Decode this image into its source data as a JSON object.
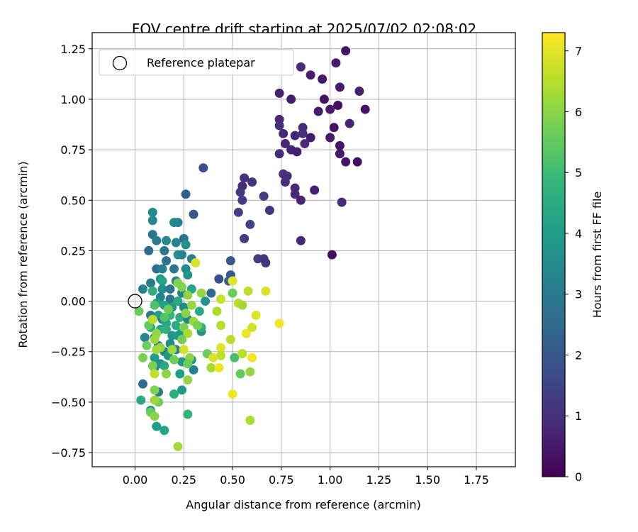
{
  "chart_data": {
    "type": "scatter",
    "title": "FOV centre drift starting at 2025/07/02 02:08:02",
    "xlabel": "Angular distance from reference (arcmin)",
    "ylabel": "Rotation from reference (arcmin)",
    "xlim": [
      -0.22,
      1.95
    ],
    "ylim": [
      -0.82,
      1.33
    ],
    "x_ticks": [
      0.0,
      0.25,
      0.5,
      0.75,
      1.0,
      1.25,
      1.5,
      1.75
    ],
    "x_tick_labels": [
      "0.00",
      "0.25",
      "0.50",
      "0.75",
      "1.00",
      "1.25",
      "1.50",
      "1.75"
    ],
    "y_ticks": [
      -0.75,
      -0.5,
      -0.25,
      0.0,
      0.25,
      0.5,
      0.75,
      1.0,
      1.25
    ],
    "y_tick_labels": [
      "−0.75",
      "−0.50",
      "−0.25",
      "0.00",
      "0.25",
      "0.50",
      "0.75",
      "1.00",
      "1.25"
    ],
    "grid": true,
    "legend": {
      "placement": "top-left",
      "entries": [
        "Reference platepar"
      ]
    },
    "reference_point": {
      "x": 0.0,
      "y": 0.0
    },
    "colorbar": {
      "label": "Hours from first FF file",
      "range": [
        0,
        7.3
      ],
      "ticks": [
        0,
        1,
        2,
        3,
        4,
        5,
        6,
        7
      ],
      "tick_labels": [
        "0",
        "1",
        "2",
        "3",
        "4",
        "5",
        "6",
        "7"
      ],
      "colormap": "viridis"
    },
    "colormap_stops": [
      "#440154",
      "#482878",
      "#3e4989",
      "#31688e",
      "#26828e",
      "#1f9e89",
      "#35b779",
      "#6ece58",
      "#b5de2b",
      "#fde725"
    ],
    "points": [
      {
        "x": 1.08,
        "y": 1.24,
        "h": 0.4
      },
      {
        "x": 1.03,
        "y": 1.18,
        "h": 0.5
      },
      {
        "x": 0.85,
        "y": 1.16,
        "h": 0.9
      },
      {
        "x": 0.9,
        "y": 1.12,
        "h": 0.6
      },
      {
        "x": 0.96,
        "y": 1.1,
        "h": 0.5
      },
      {
        "x": 1.05,
        "y": 1.06,
        "h": 0.5
      },
      {
        "x": 1.15,
        "y": 1.04,
        "h": 0.6
      },
      {
        "x": 0.74,
        "y": 1.03,
        "h": 0.7
      },
      {
        "x": 0.97,
        "y": 1.0,
        "h": 0.4
      },
      {
        "x": 0.8,
        "y": 1.0,
        "h": 0.6
      },
      {
        "x": 1.04,
        "y": 0.97,
        "h": 0.3
      },
      {
        "x": 1.0,
        "y": 0.95,
        "h": 0.5
      },
      {
        "x": 0.94,
        "y": 0.94,
        "h": 0.6
      },
      {
        "x": 1.18,
        "y": 0.95,
        "h": 0.4
      },
      {
        "x": 0.74,
        "y": 0.9,
        "h": 0.8
      },
      {
        "x": 0.74,
        "y": 0.87,
        "h": 1.0
      },
      {
        "x": 1.1,
        "y": 0.88,
        "h": 0.7
      },
      {
        "x": 1.02,
        "y": 0.86,
        "h": 0.4
      },
      {
        "x": 0.86,
        "y": 0.86,
        "h": 0.9
      },
      {
        "x": 0.76,
        "y": 0.83,
        "h": 0.8
      },
      {
        "x": 0.82,
        "y": 0.82,
        "h": 0.7
      },
      {
        "x": 0.86,
        "y": 0.83,
        "h": 1.0
      },
      {
        "x": 0.9,
        "y": 0.81,
        "h": 0.6
      },
      {
        "x": 1.0,
        "y": 0.81,
        "h": 0.5
      },
      {
        "x": 0.77,
        "y": 0.78,
        "h": 0.8
      },
      {
        "x": 0.87,
        "y": 0.78,
        "h": 0.9
      },
      {
        "x": 0.8,
        "y": 0.75,
        "h": 0.7
      },
      {
        "x": 0.74,
        "y": 0.73,
        "h": 0.9
      },
      {
        "x": 1.05,
        "y": 0.77,
        "h": 0.4
      },
      {
        "x": 0.83,
        "y": 0.74,
        "h": 0.6
      },
      {
        "x": 1.05,
        "y": 0.73,
        "h": 0.5
      },
      {
        "x": 1.08,
        "y": 0.69,
        "h": 0.4
      },
      {
        "x": 1.14,
        "y": 0.69,
        "h": 0.3
      },
      {
        "x": 0.76,
        "y": 0.63,
        "h": 1.1
      },
      {
        "x": 0.78,
        "y": 0.62,
        "h": 0.9
      },
      {
        "x": 0.77,
        "y": 0.59,
        "h": 1.0
      },
      {
        "x": 0.82,
        "y": 0.56,
        "h": 0.9
      },
      {
        "x": 0.82,
        "y": 0.53,
        "h": 0.8
      },
      {
        "x": 0.92,
        "y": 0.55,
        "h": 0.6
      },
      {
        "x": 0.85,
        "y": 0.5,
        "h": 0.7
      },
      {
        "x": 1.06,
        "y": 0.49,
        "h": 0.9
      },
      {
        "x": 0.56,
        "y": 0.61,
        "h": 1.0
      },
      {
        "x": 0.55,
        "y": 0.57,
        "h": 0.9
      },
      {
        "x": 0.6,
        "y": 0.59,
        "h": 1.1
      },
      {
        "x": 0.54,
        "y": 0.54,
        "h": 1.2
      },
      {
        "x": 0.55,
        "y": 0.5,
        "h": 1.3
      },
      {
        "x": 0.66,
        "y": 0.52,
        "h": 1.3
      },
      {
        "x": 0.53,
        "y": 0.44,
        "h": 1.4
      },
      {
        "x": 0.69,
        "y": 0.45,
        "h": 1.1
      },
      {
        "x": 0.59,
        "y": 0.38,
        "h": 1.5
      },
      {
        "x": 0.56,
        "y": 0.31,
        "h": 1.4
      },
      {
        "x": 0.85,
        "y": 0.3,
        "h": 0.8
      },
      {
        "x": 0.63,
        "y": 0.21,
        "h": 1.3
      },
      {
        "x": 0.66,
        "y": 0.21,
        "h": 1.2
      },
      {
        "x": 0.67,
        "y": 0.19,
        "h": 1.1
      },
      {
        "x": 1.01,
        "y": 0.23,
        "h": 0.3
      },
      {
        "x": 0.35,
        "y": 0.66,
        "h": 1.8
      },
      {
        "x": 0.26,
        "y": 0.53,
        "h": 2.2
      },
      {
        "x": 0.3,
        "y": 0.43,
        "h": 2.0
      },
      {
        "x": 0.49,
        "y": 0.2,
        "h": 2.0
      },
      {
        "x": 0.49,
        "y": 0.13,
        "h": 2.1
      },
      {
        "x": 0.43,
        "y": 0.11,
        "h": 1.8
      },
      {
        "x": 0.48,
        "y": 0.1,
        "h": 2.2
      },
      {
        "x": 0.39,
        "y": 0.04,
        "h": 2.4
      },
      {
        "x": 0.09,
        "y": 0.44,
        "h": 3.5
      },
      {
        "x": 0.09,
        "y": 0.4,
        "h": 3.4
      },
      {
        "x": 0.2,
        "y": 0.39,
        "h": 3.5
      },
      {
        "x": 0.22,
        "y": 0.39,
        "h": 3.2
      },
      {
        "x": 0.09,
        "y": 0.33,
        "h": 2.8
      },
      {
        "x": 0.11,
        "y": 0.3,
        "h": 3.0
      },
      {
        "x": 0.16,
        "y": 0.3,
        "h": 3.5
      },
      {
        "x": 0.21,
        "y": 0.29,
        "h": 3.3
      },
      {
        "x": 0.25,
        "y": 0.31,
        "h": 2.8
      },
      {
        "x": 0.26,
        "y": 0.28,
        "h": 3.6
      },
      {
        "x": 0.07,
        "y": 0.25,
        "h": 2.6
      },
      {
        "x": 0.15,
        "y": 0.25,
        "h": 2.9
      },
      {
        "x": 0.22,
        "y": 0.23,
        "h": 3.8
      },
      {
        "x": 0.24,
        "y": 0.23,
        "h": 3.3
      },
      {
        "x": 0.29,
        "y": 0.21,
        "h": 3.1
      },
      {
        "x": 0.16,
        "y": 0.2,
        "h": 2.7
      },
      {
        "x": 0.11,
        "y": 0.16,
        "h": 2.6
      },
      {
        "x": 0.14,
        "y": 0.16,
        "h": 3.2
      },
      {
        "x": 0.2,
        "y": 0.16,
        "h": 3.0
      },
      {
        "x": 0.26,
        "y": 0.16,
        "h": 3.5
      },
      {
        "x": 0.13,
        "y": 0.11,
        "h": 3.9
      },
      {
        "x": 0.27,
        "y": 0.13,
        "h": 3.7
      },
      {
        "x": 0.08,
        "y": 0.09,
        "h": 3.0
      },
      {
        "x": 0.14,
        "y": 0.1,
        "h": 4.2
      },
      {
        "x": 0.21,
        "y": 0.1,
        "h": 3.2
      },
      {
        "x": 0.04,
        "y": 0.06,
        "h": 3.1
      },
      {
        "x": 0.09,
        "y": 0.05,
        "h": 4.6
      },
      {
        "x": 0.14,
        "y": 0.06,
        "h": 3.6
      },
      {
        "x": 0.18,
        "y": 0.06,
        "h": 2.9
      },
      {
        "x": 0.29,
        "y": 0.06,
        "h": 4.3
      },
      {
        "x": 0.24,
        "y": 0.04,
        "h": 3.4
      },
      {
        "x": 0.13,
        "y": 0.02,
        "h": 3.3
      },
      {
        "x": 0.18,
        "y": 0.01,
        "h": 2.8
      },
      {
        "x": 0.22,
        "y": 0.0,
        "h": 4.4
      },
      {
        "x": 0.36,
        "y": 0.0,
        "h": 3.8
      },
      {
        "x": 0.11,
        "y": -0.01,
        "h": 4.1
      },
      {
        "x": 0.15,
        "y": -0.02,
        "h": 4.2
      },
      {
        "x": 0.19,
        "y": -0.03,
        "h": 3.9
      },
      {
        "x": 0.25,
        "y": -0.03,
        "h": 3.5
      },
      {
        "x": 0.33,
        "y": -0.05,
        "h": 4.4
      },
      {
        "x": 0.08,
        "y": -0.07,
        "h": 3.0
      },
      {
        "x": 0.12,
        "y": -0.07,
        "h": 4.0
      },
      {
        "x": 0.18,
        "y": -0.07,
        "h": 4.8
      },
      {
        "x": 0.23,
        "y": -0.08,
        "h": 4.5
      },
      {
        "x": 0.27,
        "y": -0.09,
        "h": 3.4
      },
      {
        "x": 0.14,
        "y": -0.09,
        "h": 3.2
      },
      {
        "x": 0.16,
        "y": -0.11,
        "h": 4.3
      },
      {
        "x": 0.21,
        "y": -0.12,
        "h": 4.5
      },
      {
        "x": 0.08,
        "y": -0.13,
        "h": 4.5
      },
      {
        "x": 0.13,
        "y": -0.14,
        "h": 4.4
      },
      {
        "x": 0.16,
        "y": -0.14,
        "h": 4.6
      },
      {
        "x": 0.24,
        "y": -0.15,
        "h": 4.1
      },
      {
        "x": 0.34,
        "y": -0.15,
        "h": 3.7
      },
      {
        "x": 0.05,
        "y": -0.18,
        "h": 3.3
      },
      {
        "x": 0.1,
        "y": -0.18,
        "h": 3.6
      },
      {
        "x": 0.19,
        "y": -0.17,
        "h": 3.9
      },
      {
        "x": 0.22,
        "y": -0.17,
        "h": 4.0
      },
      {
        "x": 0.18,
        "y": -0.21,
        "h": 3.5
      },
      {
        "x": 0.12,
        "y": -0.22,
        "h": 3.0
      },
      {
        "x": 0.15,
        "y": -0.25,
        "h": 3.3
      },
      {
        "x": 0.21,
        "y": -0.24,
        "h": 3.2
      },
      {
        "x": 0.1,
        "y": -0.28,
        "h": 4.1
      },
      {
        "x": 0.17,
        "y": -0.27,
        "h": 4.0
      },
      {
        "x": 0.29,
        "y": -0.29,
        "h": 3.7
      },
      {
        "x": 0.13,
        "y": -0.31,
        "h": 3.6
      },
      {
        "x": 0.24,
        "y": -0.3,
        "h": 3.9
      },
      {
        "x": 0.1,
        "y": -0.33,
        "h": 3.5
      },
      {
        "x": 0.15,
        "y": -0.32,
        "h": 4.4
      },
      {
        "x": 0.3,
        "y": -0.34,
        "h": 3.2
      },
      {
        "x": 0.23,
        "y": -0.36,
        "h": 4.1
      },
      {
        "x": 0.04,
        "y": -0.41,
        "h": 2.6
      },
      {
        "x": 0.12,
        "y": -0.45,
        "h": 3.0
      },
      {
        "x": 0.24,
        "y": -0.44,
        "h": 3.9
      },
      {
        "x": 0.2,
        "y": -0.46,
        "h": 4.6
      },
      {
        "x": 0.03,
        "y": -0.49,
        "h": 4.4
      },
      {
        "x": 0.08,
        "y": -0.54,
        "h": 4.2
      },
      {
        "x": 0.27,
        "y": -0.56,
        "h": 4.8
      },
      {
        "x": 0.11,
        "y": -0.62,
        "h": 4.0
      },
      {
        "x": 0.15,
        "y": -0.64,
        "h": 4.3
      },
      {
        "x": 0.34,
        "y": -0.13,
        "h": 4.7
      },
      {
        "x": 0.06,
        "y": -0.22,
        "h": 5.6
      },
      {
        "x": 0.07,
        "y": -0.12,
        "h": 5.5
      },
      {
        "x": 0.04,
        "y": -0.28,
        "h": 5.8
      },
      {
        "x": 0.02,
        "y": -0.05,
        "h": 5.6
      },
      {
        "x": 0.1,
        "y": -0.02,
        "h": 5.2
      },
      {
        "x": 0.15,
        "y": -0.08,
        "h": 5.3
      },
      {
        "x": 0.17,
        "y": -0.04,
        "h": 5.7
      },
      {
        "x": 0.24,
        "y": 0.07,
        "h": 5.9
      },
      {
        "x": 0.22,
        "y": 0.09,
        "h": 5.9
      },
      {
        "x": 0.29,
        "y": -0.02,
        "h": 6.1
      },
      {
        "x": 0.27,
        "y": 0.03,
        "h": 6.0
      },
      {
        "x": 0.26,
        "y": -0.06,
        "h": 6.0
      },
      {
        "x": 0.3,
        "y": -0.1,
        "h": 6.2
      },
      {
        "x": 0.32,
        "y": -0.12,
        "h": 5.8
      },
      {
        "x": 0.25,
        "y": -0.13,
        "h": 5.8
      },
      {
        "x": 0.27,
        "y": -0.16,
        "h": 6.4
      },
      {
        "x": 0.24,
        "y": -0.19,
        "h": 5.7
      },
      {
        "x": 0.11,
        "y": -0.16,
        "h": 6.1
      },
      {
        "x": 0.1,
        "y": -0.19,
        "h": 6.2
      },
      {
        "x": 0.09,
        "y": -0.09,
        "h": 6.5
      },
      {
        "x": 0.13,
        "y": -0.23,
        "h": 6.1
      },
      {
        "x": 0.11,
        "y": -0.24,
        "h": 6.3
      },
      {
        "x": 0.19,
        "y": -0.24,
        "h": 6.3
      },
      {
        "x": 0.25,
        "y": -0.24,
        "h": 6.8
      },
      {
        "x": 0.28,
        "y": -0.28,
        "h": 6.0
      },
      {
        "x": 0.27,
        "y": -0.31,
        "h": 5.6
      },
      {
        "x": 0.2,
        "y": -0.29,
        "h": 5.7
      },
      {
        "x": 0.09,
        "y": -0.32,
        "h": 5.8
      },
      {
        "x": 0.16,
        "y": -0.36,
        "h": 6.0
      },
      {
        "x": 0.1,
        "y": -0.36,
        "h": 6.6
      },
      {
        "x": 0.27,
        "y": -0.39,
        "h": 6.1
      },
      {
        "x": 0.1,
        "y": -0.44,
        "h": 5.9
      },
      {
        "x": 0.12,
        "y": -0.5,
        "h": 5.7
      },
      {
        "x": 0.1,
        "y": -0.49,
        "h": 6.2
      },
      {
        "x": 0.08,
        "y": -0.55,
        "h": 5.6
      },
      {
        "x": 0.1,
        "y": -0.57,
        "h": 6.0
      },
      {
        "x": 0.22,
        "y": -0.72,
        "h": 6.3
      },
      {
        "x": 0.31,
        "y": 0.19,
        "h": 6.9
      },
      {
        "x": 0.34,
        "y": 0.04,
        "h": 6.1
      },
      {
        "x": 0.44,
        "y": 0.01,
        "h": 6.7
      },
      {
        "x": 0.42,
        "y": -0.05,
        "h": 6.4
      },
      {
        "x": 0.44,
        "y": -0.12,
        "h": 6.5
      },
      {
        "x": 0.37,
        "y": -0.26,
        "h": 5.6
      },
      {
        "x": 0.44,
        "y": -0.23,
        "h": 7.0
      },
      {
        "x": 0.44,
        "y": -0.27,
        "h": 6.6
      },
      {
        "x": 0.4,
        "y": -0.28,
        "h": 6.9
      },
      {
        "x": 0.49,
        "y": -0.19,
        "h": 6.5
      },
      {
        "x": 0.39,
        "y": -0.33,
        "h": 6.3
      },
      {
        "x": 0.43,
        "y": -0.33,
        "h": 7.1
      },
      {
        "x": 0.5,
        "y": 0.1,
        "h": 7.0
      },
      {
        "x": 0.5,
        "y": 0.04,
        "h": 5.6
      },
      {
        "x": 0.53,
        "y": -0.01,
        "h": 6.5
      },
      {
        "x": 0.55,
        "y": -0.02,
        "h": 6.3
      },
      {
        "x": 0.58,
        "y": 0.05,
        "h": 6.6
      },
      {
        "x": 0.62,
        "y": -0.07,
        "h": 7.0
      },
      {
        "x": 0.6,
        "y": -0.13,
        "h": 6.8
      },
      {
        "x": 0.57,
        "y": -0.16,
        "h": 7.1
      },
      {
        "x": 0.67,
        "y": 0.05,
        "h": 6.9
      },
      {
        "x": 0.74,
        "y": -0.11,
        "h": 7.2
      },
      {
        "x": 0.51,
        "y": -0.28,
        "h": 5.1
      },
      {
        "x": 0.55,
        "y": -0.26,
        "h": 6.5
      },
      {
        "x": 0.6,
        "y": -0.28,
        "h": 7.2
      },
      {
        "x": 0.54,
        "y": -0.36,
        "h": 5.5
      },
      {
        "x": 0.59,
        "y": -0.35,
        "h": 6.1
      },
      {
        "x": 0.5,
        "y": -0.46,
        "h": 7.1
      },
      {
        "x": 0.59,
        "y": -0.59,
        "h": 6.4
      }
    ]
  }
}
